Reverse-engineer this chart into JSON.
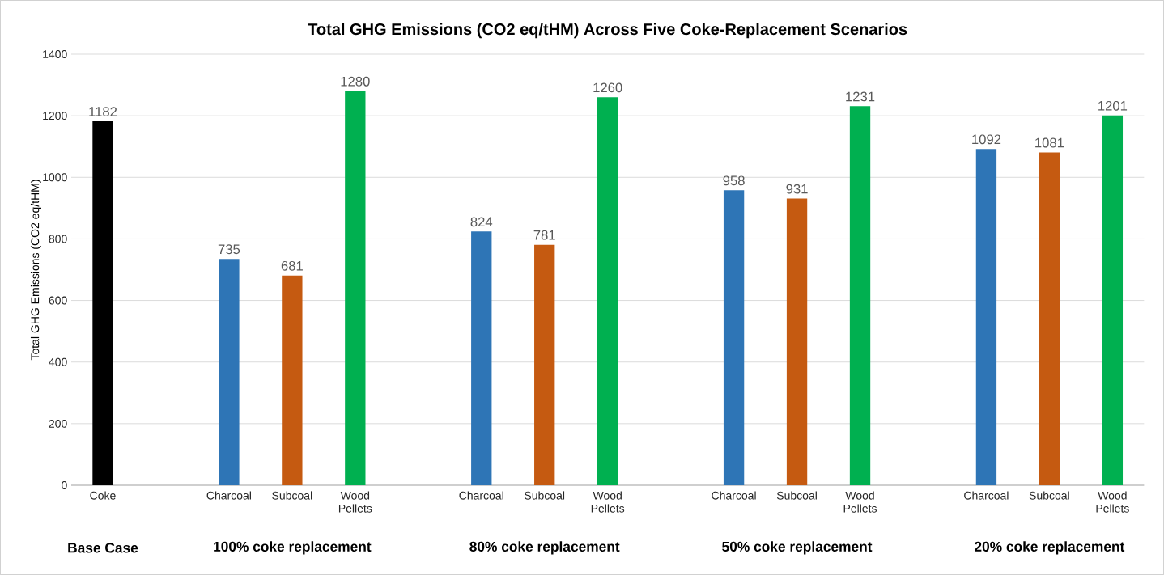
{
  "chart_data": {
    "type": "bar",
    "title": "Total GHG Emissions (CO2 eq/tHM) Across Five Coke-Replacement Scenarios",
    "ylabel": "Total GHG Emissions (CO2 eq/tHM)",
    "categories": [
      "Coke",
      null,
      "Charcoal",
      "Subcoal",
      "Wood Pellets",
      null,
      "Charcoal",
      "Subcoal",
      "Wood Pellets",
      null,
      "Charcoal",
      "Subcoal",
      "Wood Pellets",
      null,
      "Charcoal",
      "Subcoal",
      "Wood Pellets"
    ],
    "values": [
      1182,
      null,
      735,
      681,
      1280,
      null,
      824,
      781,
      1260,
      null,
      958,
      931,
      1231,
      null,
      1092,
      1081,
      1201
    ],
    "colors": [
      "#000000",
      null,
      "#2e75b6",
      "#c55a11",
      "#00b050",
      null,
      "#2e75b6",
      "#c55a11",
      "#00b050",
      null,
      "#2e75b6",
      "#c55a11",
      "#00b050",
      null,
      "#2e75b6",
      "#c55a11",
      "#00b050"
    ],
    "ylim": [
      0,
      1400
    ],
    "yticks": [
      0,
      200,
      400,
      600,
      800,
      1000,
      1200,
      1400
    ],
    "grid": "y",
    "data_labels": true,
    "annotations": [
      "Base Case",
      "100% coke replacement",
      "80% coke replacement",
      "50% coke replacement",
      "20% coke replacement"
    ]
  }
}
